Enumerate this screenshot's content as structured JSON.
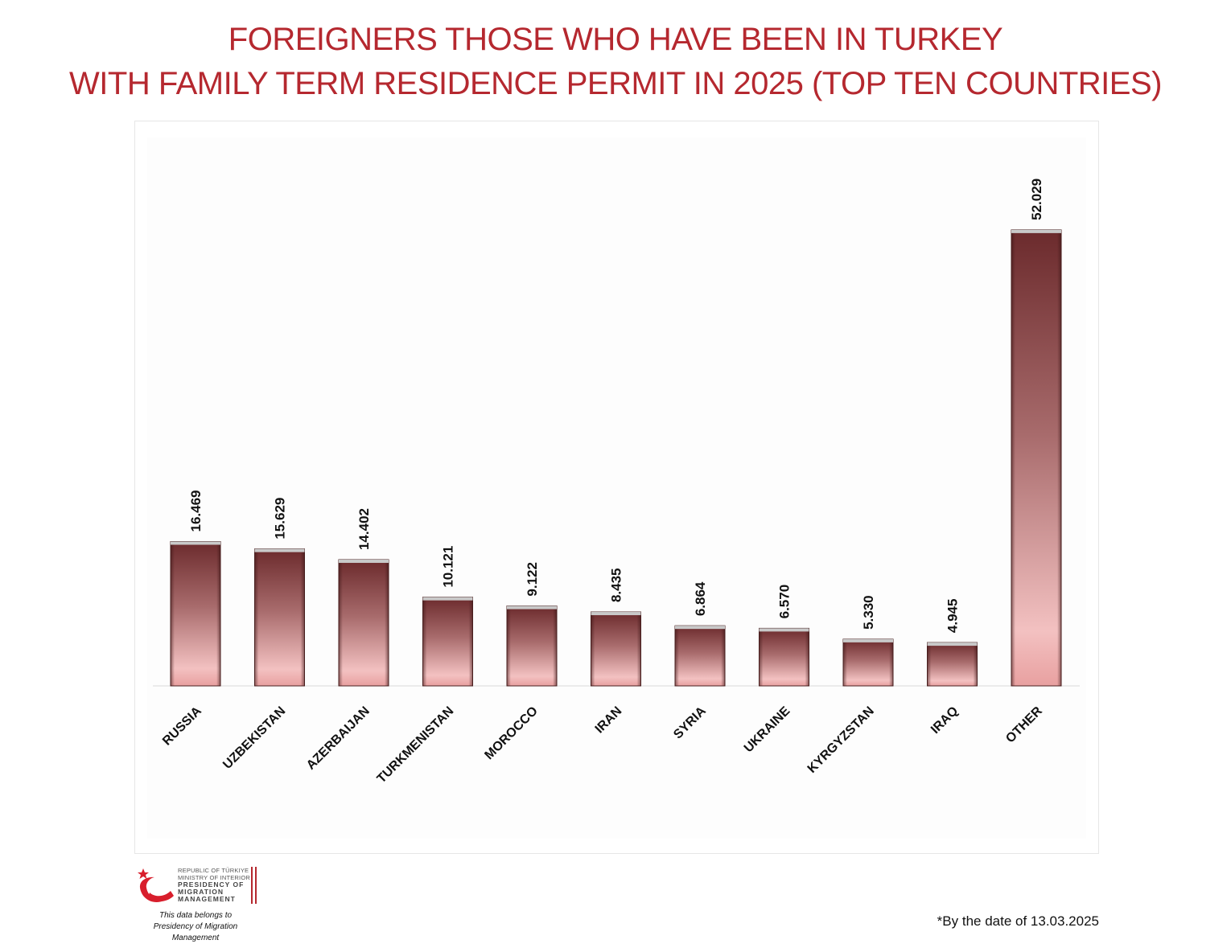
{
  "title_line1": "FOREIGNERS THOSE WHO HAVE BEEN IN TURKEY",
  "title_line2": "WITH FAMILY TERM RESIDENCE PERMIT IN 2025 (TOP TEN COUNTRIES)",
  "colors": {
    "title": "#b5282f",
    "bar_top": "#6b2a2c",
    "bar_bottom": "#f3c1c1",
    "logo_accent": "#d81e2c"
  },
  "chart_data": {
    "type": "bar",
    "categories": [
      "RUSSIA",
      "UZBEKISTAN",
      "AZERBAIJAN",
      "TURKMENISTAN",
      "MOROCCO",
      "IRAN",
      "SYRIA",
      "UKRAINE",
      "KYRGYZSTAN",
      "IRAQ",
      "OTHER"
    ],
    "values": [
      16469,
      15629,
      14402,
      10121,
      9122,
      8435,
      6864,
      6570,
      5330,
      4945,
      52029
    ],
    "value_labels": [
      "16.469",
      "15.629",
      "14.402",
      "10.121",
      "9.122",
      "8.435",
      "6.864",
      "6.570",
      "5.330",
      "4.945",
      "52.029"
    ],
    "ylim": [
      0,
      60000
    ],
    "grid": false,
    "legend": "none",
    "data_label_orientation": "vertical",
    "category_label_orientation": "rotated-45"
  },
  "footer": {
    "org_line1": "REPUBLIC OF TÜRKIYE",
    "org_line2": "MINISTRY OF INTERIOR",
    "org_line3": "PRESIDENCY OF",
    "org_line4": "MIGRATION MANAGEMENT",
    "note_line1": "This data belongs to",
    "note_line2": "Presidency of Migration Management",
    "logo_icon": "crescent-star-bird-logo",
    "date_note": "*By the date of 13.03.2025"
  }
}
